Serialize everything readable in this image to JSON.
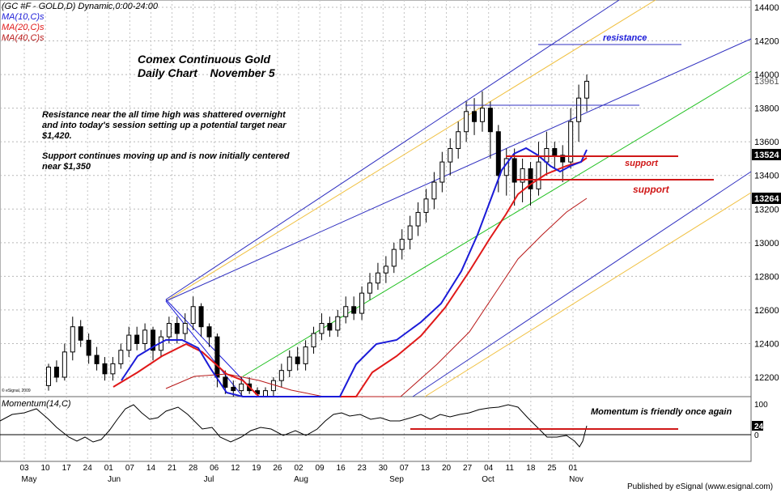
{
  "header": {
    "symbol_line": "(GC #F - GOLD,D) Dynamic,0:00-24:00",
    "ma10": "MA(10,C)s",
    "ma20": "MA(20,C)s",
    "ma40": "MA(40,C)s"
  },
  "title": {
    "line1": "Comex Continuous Gold",
    "line2": "Daily Chart    November 5"
  },
  "commentary": {
    "p1_l1": "Resistance near the all time high was shattered overnight",
    "p1_l2": "and into today's session setting up a potential target near",
    "p1_l3": "$1,420.",
    "p2_l1": "Support continues moving up and is now initially centered",
    "p2_l2": "near $1,350"
  },
  "annotations": {
    "resistance": "resistance",
    "support1": "support",
    "support2": "support",
    "momentum_note": "Momentum is friendly once again"
  },
  "price_axis": {
    "ticks": [
      "14400",
      "14200",
      "14000",
      "13961",
      "13800",
      "13600",
      "13524",
      "13400",
      "13264",
      "13200",
      "13000",
      "12800",
      "12600",
      "12400",
      "12200"
    ],
    "last_price": "13524",
    "ma_value": "13264"
  },
  "momentum": {
    "label": "Momentum(14,C)",
    "ticks": [
      "100",
      "24",
      "0"
    ]
  },
  "time_axis": {
    "days": [
      "03",
      "10",
      "17",
      "24",
      "01",
      "07",
      "14",
      "21",
      "28",
      "06",
      "12",
      "19",
      "26",
      "02",
      "09",
      "16",
      "23",
      "30",
      "07",
      "13",
      "20",
      "27",
      "04",
      "11",
      "18",
      "25",
      "01"
    ],
    "months": [
      "May",
      "Jun",
      "Jul",
      "Aug",
      "Sep",
      "Oct",
      "Nov"
    ]
  },
  "copyright": "© eSignal, 2009",
  "footer": "Published by eSignal (www.esignal.com)",
  "colors": {
    "ma10": "#1b1bd8",
    "ma20": "#e01818",
    "ma40": "#b81818",
    "channel_blue": "#3030c0",
    "channel_yellow": "#f0c040",
    "channel_green": "#20c020",
    "badge_bg": "#000000"
  },
  "chart_data": {
    "type": "candlestick",
    "title": "Comex Continuous Gold",
    "subtitle": "Daily Chart    November 5",
    "y_range": [
      1210,
      1447
    ],
    "series": [
      {
        "name": "MA(10,C)s",
        "last": 1352.4
      },
      {
        "name": "MA(20,C)s"
      },
      {
        "name": "MA(40,C)s",
        "last": 1326.4
      }
    ],
    "last_close": 1396.1,
    "levels": {
      "resistance": 1382,
      "support": [
        1351,
        1338
      ]
    },
    "momentum": {
      "name": "Momentum(14,C)",
      "range": [
        -50,
        100
      ],
      "last": 24
    }
  }
}
